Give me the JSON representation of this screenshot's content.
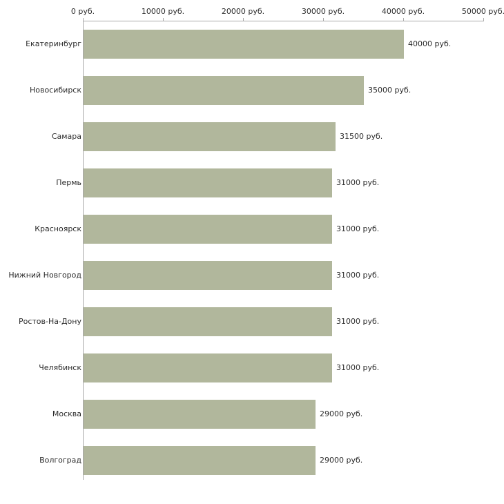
{
  "chart_data": {
    "type": "bar",
    "orientation": "horizontal",
    "title": "",
    "xlabel": "",
    "ylabel": "",
    "categories": [
      "Екатеринбург",
      "Новосибирск",
      "Самара",
      "Пермь",
      "Красноярск",
      "Нижний Новгород",
      "Ростов-На-Дону",
      "Челябинск",
      "Москва",
      "Волгоград"
    ],
    "values": [
      40000,
      35000,
      31500,
      31000,
      31000,
      31000,
      31000,
      31000,
      29000,
      29000
    ],
    "value_labels": [
      "40000 руб.",
      "35000 руб.",
      "31500 руб.",
      "31000 руб.",
      "31000 руб.",
      "31000 руб.",
      "31000 руб.",
      "31000 руб.",
      "29000 руб.",
      "29000 руб."
    ],
    "x_ticks": [
      "0 руб.",
      "10000 руб.",
      "20000 руб.",
      "30000 руб.",
      "40000 руб.",
      "50000 руб."
    ],
    "x_tick_values": [
      0,
      10000,
      20000,
      30000,
      40000,
      50000
    ],
    "xlim": [
      0,
      50000
    ],
    "unit": "руб.",
    "bar_color": "#b1b79c",
    "axis_color": "#a9a9a9",
    "grid": false,
    "legend": "none",
    "axis_position": "top"
  }
}
